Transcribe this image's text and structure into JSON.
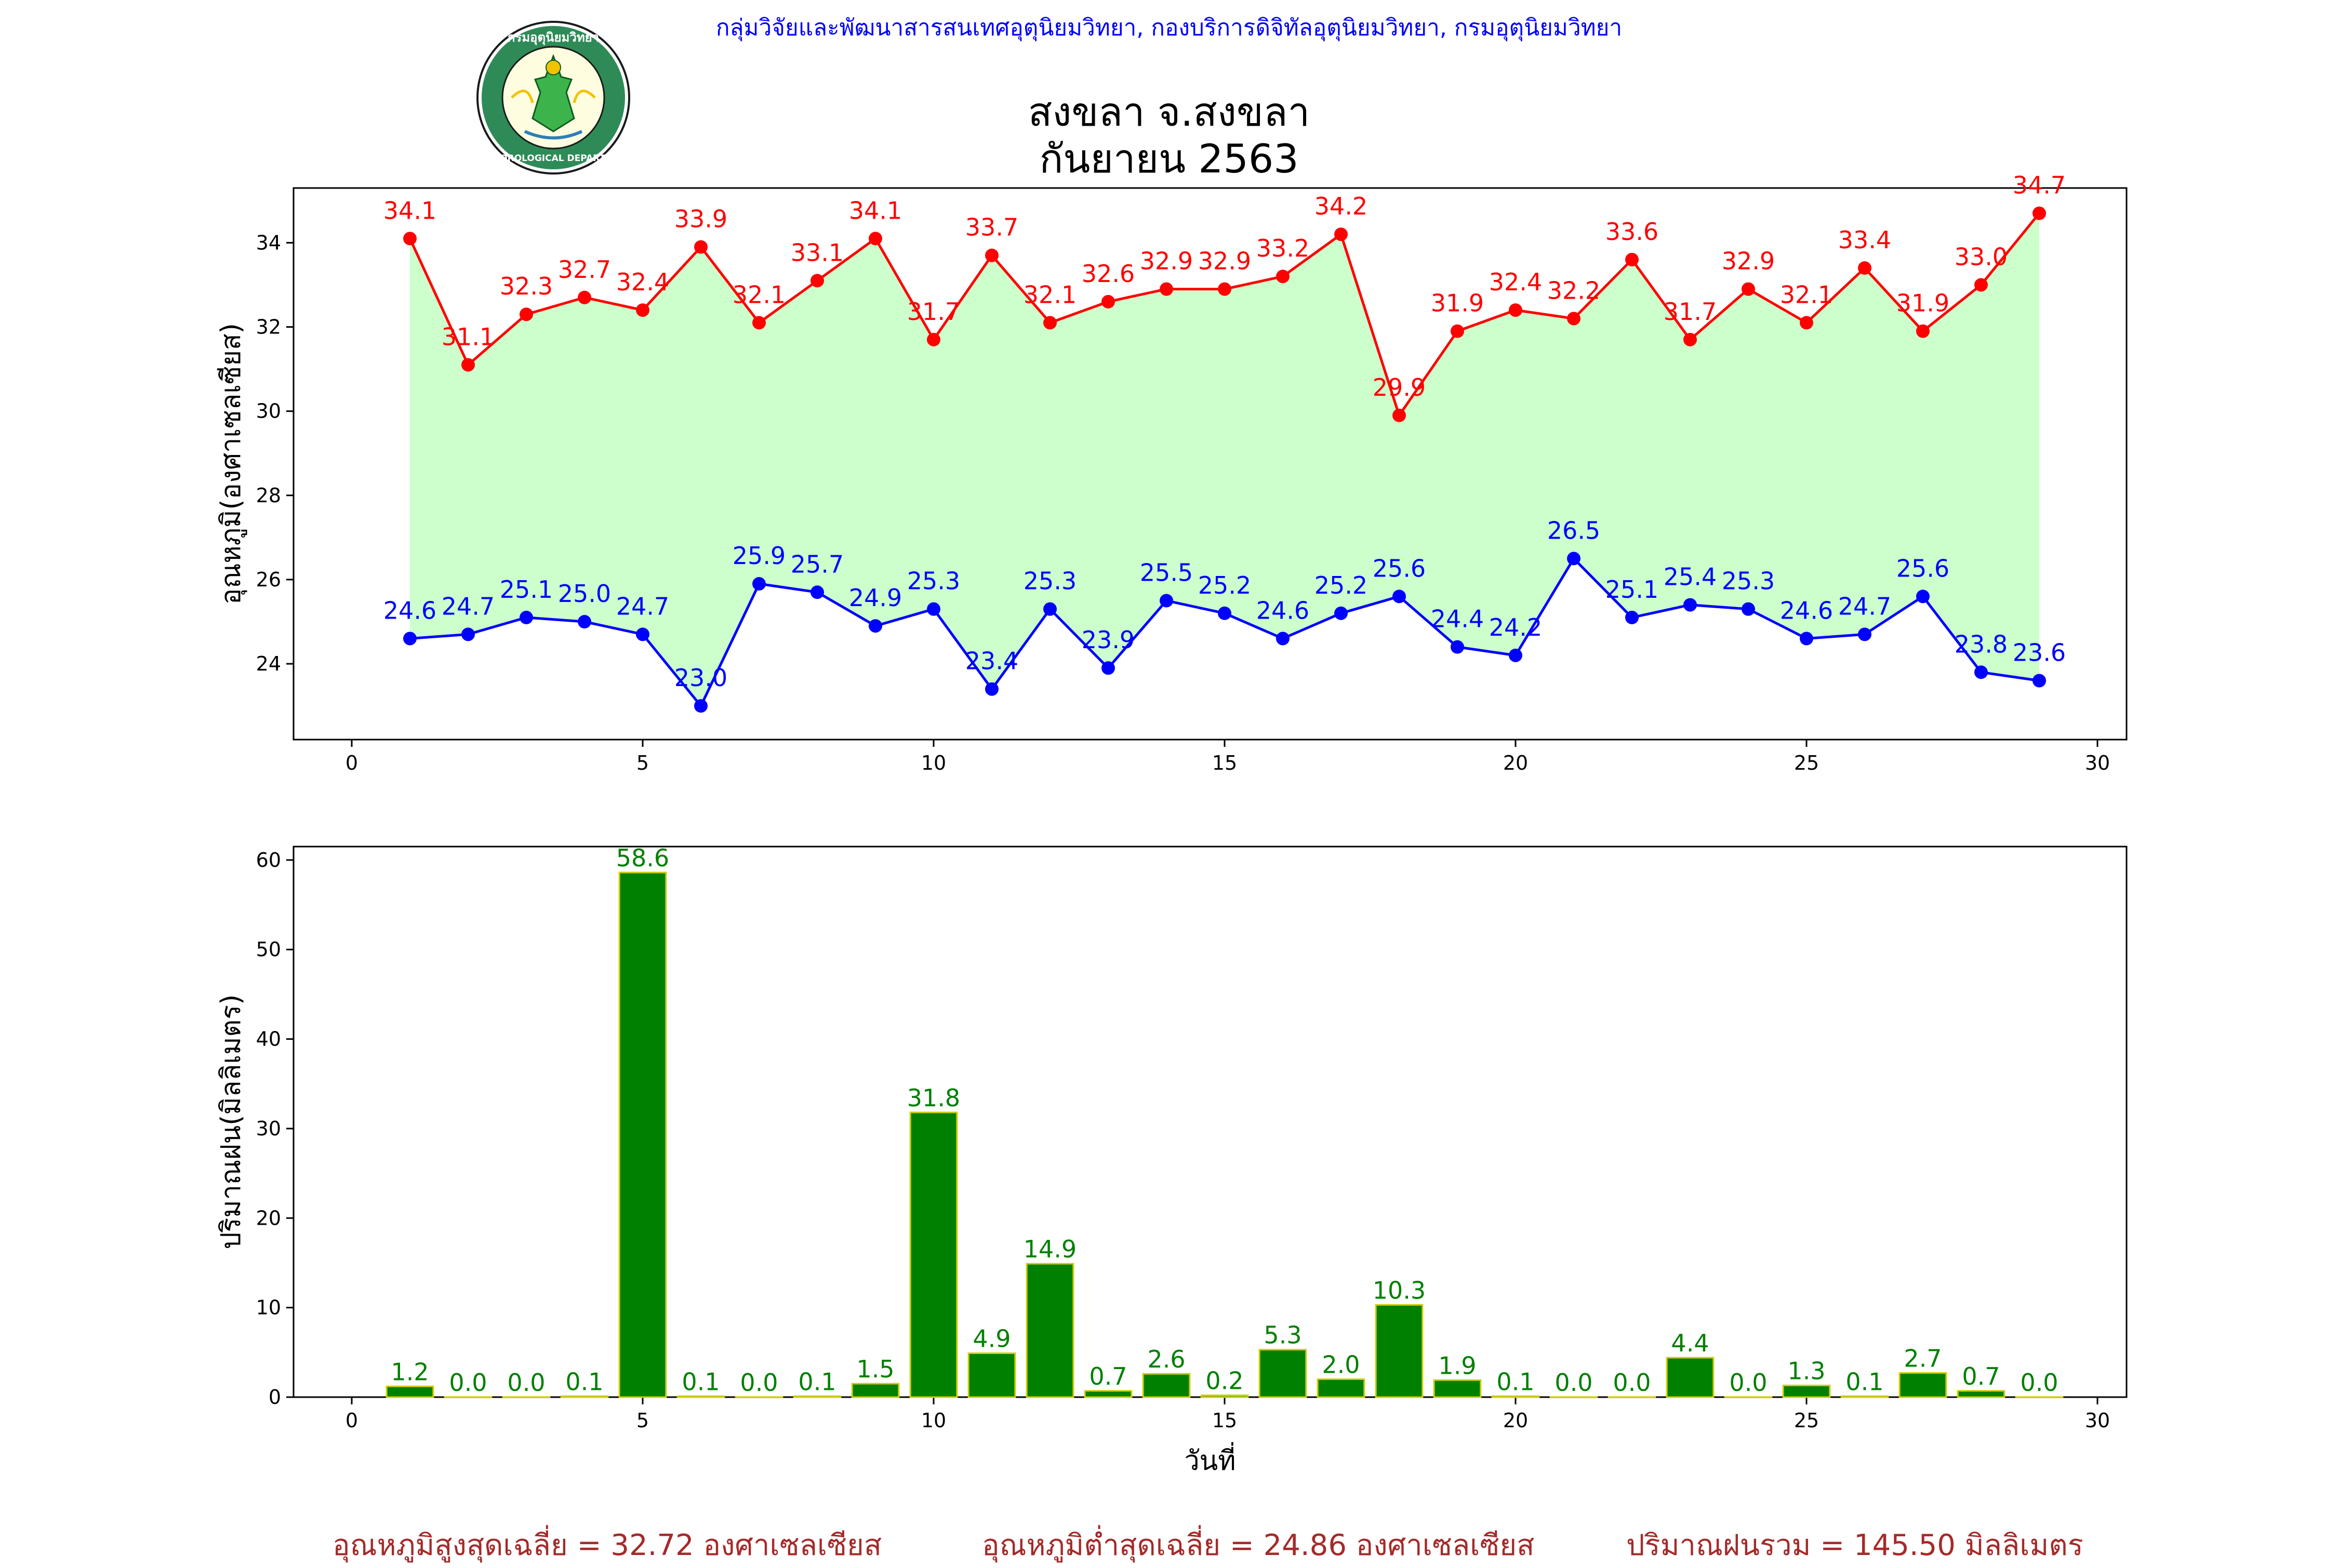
{
  "header": {
    "agency_line": "กลุ่มวิจัยและพัฒนาสารสนเทศอุตุนิยมวิทยา, กองบริการดิจิทัลอุตุนิยมวิทยา, กรมอุตุนิยมวิทยา",
    "logo_text_top": "กรมอุตุนิยมวิทยา",
    "logo_text_bottom": "METEOROLOGICAL DEPARTMENT",
    "title_line1": "สงขลา จ.สงขลา",
    "title_line2": "กันยายน 2563"
  },
  "colors": {
    "max_line": "#ff0000",
    "min_line": "#0000ff",
    "band_fill": "#ccffcc",
    "bar_fill": "#008000",
    "bar_edge": "#cccc00",
    "bar_label": "#008000",
    "summary": "#a52a2a"
  },
  "chart_data": [
    {
      "type": "line",
      "ylabel": "อุณหภูมิ(องศาเซลเซียส)",
      "xlabel": "",
      "xlim": [
        -1,
        30.5
      ],
      "ylim": [
        22.2,
        35.3
      ],
      "xticks": [
        "0",
        "5",
        "10",
        "15",
        "20",
        "25",
        "30"
      ],
      "yticks": [
        "24",
        "26",
        "28",
        "30",
        "32",
        "34"
      ],
      "x": [
        1,
        2,
        3,
        4,
        5,
        6,
        7,
        8,
        9,
        10,
        11,
        12,
        13,
        14,
        15,
        16,
        17,
        18,
        19,
        20,
        21,
        22,
        23,
        24,
        25,
        26,
        27,
        28,
        29
      ],
      "series": [
        {
          "name": "max",
          "values": [
            34.1,
            31.1,
            32.3,
            32.7,
            32.4,
            33.9,
            32.1,
            33.1,
            34.1,
            31.7,
            33.7,
            32.1,
            32.6,
            32.9,
            32.9,
            33.2,
            34.2,
            29.9,
            31.9,
            32.4,
            32.2,
            33.6,
            31.7,
            32.9,
            32.1,
            33.4,
            31.9,
            33.0,
            34.7
          ]
        },
        {
          "name": "min",
          "values": [
            24.6,
            24.7,
            25.1,
            25.0,
            24.7,
            23.0,
            25.9,
            25.7,
            24.9,
            25.3,
            23.4,
            25.3,
            23.9,
            25.5,
            25.2,
            24.6,
            25.2,
            25.6,
            24.4,
            24.2,
            26.5,
            25.1,
            25.4,
            25.3,
            24.6,
            24.7,
            25.6,
            23.8,
            23.6
          ]
        }
      ],
      "labels_max": [
        "34.1",
        "31.1",
        "32.3",
        "32.7",
        "32.4",
        "33.9",
        "32.1",
        "33.1",
        "34.1",
        "31.7",
        "33.7",
        "32.1",
        "32.6",
        "32.9",
        "32.9",
        "33.2",
        "34.2",
        "29.9",
        "31.9",
        "32.4",
        "32.2",
        "33.6",
        "31.7",
        "32.9",
        "32.1",
        "33.4",
        "31.9",
        "33.0",
        "34.7"
      ],
      "labels_min": [
        "24.6",
        "24.7",
        "25.1",
        "25.0",
        "24.7",
        "23.0",
        "25.9",
        "25.7",
        "24.9",
        "25.3",
        "23.4",
        "25.3",
        "23.9",
        "25.5",
        "25.2",
        "24.6",
        "25.2",
        "25.6",
        "24.4",
        "24.2",
        "26.5",
        "25.1",
        "25.4",
        "25.3",
        "24.6",
        "24.7",
        "25.6",
        "23.8",
        "23.6"
      ],
      "grid": false
    },
    {
      "type": "bar",
      "ylabel": "ปริมาณฝน(มิลลิเมตร)",
      "xlabel": "วันที่",
      "xlim": [
        -1,
        30.5
      ],
      "ylim": [
        0,
        61.5
      ],
      "xticks": [
        "0",
        "5",
        "10",
        "15",
        "20",
        "25",
        "30"
      ],
      "yticks": [
        "0",
        "10",
        "20",
        "30",
        "40",
        "50",
        "60"
      ],
      "x": [
        1,
        2,
        3,
        4,
        5,
        6,
        7,
        8,
        9,
        10,
        11,
        12,
        13,
        14,
        15,
        16,
        17,
        18,
        19,
        20,
        21,
        22,
        23,
        24,
        25,
        26,
        27,
        28,
        29
      ],
      "values": [
        1.2,
        0.0,
        0.0,
        0.1,
        58.6,
        0.1,
        0.0,
        0.1,
        1.5,
        31.8,
        4.9,
        14.9,
        0.7,
        2.6,
        0.2,
        5.3,
        2.0,
        10.3,
        1.9,
        0.1,
        0.0,
        0.0,
        4.4,
        0.0,
        1.3,
        0.1,
        2.7,
        0.7,
        0.0
      ],
      "labels": [
        "1.2",
        "0.0",
        "0.0",
        "0.1",
        "58.6",
        "0.1",
        "0.0",
        "0.1",
        "1.5",
        "31.8",
        "4.9",
        "14.9",
        "0.7",
        "2.6",
        "0.2",
        "5.3",
        "2.0",
        "10.3",
        "1.9",
        "0.1",
        "0.0",
        "0.0",
        "4.4",
        "0.0",
        "1.3",
        "0.1",
        "2.7",
        "0.7",
        "0.0"
      ],
      "grid": false
    }
  ],
  "summary": {
    "avg_max": "อุณหภูมิสูงสุดเฉลี่ย = 32.72 องศาเซลเซียส",
    "avg_min": "อุณหภูมิต่ำสุดเฉลี่ย = 24.86 องศาเซลเซียส",
    "total_rain": "ปริมาณฝนรวม = 145.50 มิลลิเมตร"
  }
}
